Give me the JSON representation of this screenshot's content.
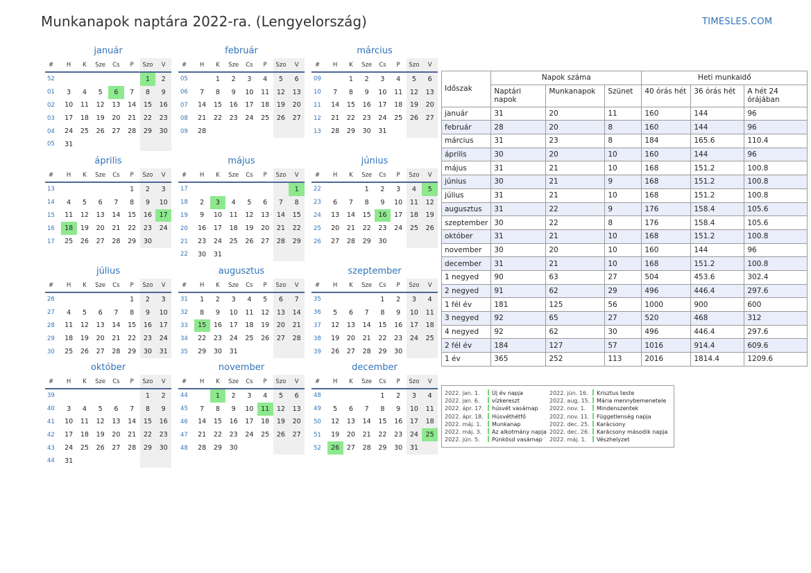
{
  "header": {
    "title": "Munkanapok naptára 2022-ra. (Lengyelország)",
    "brand": "TIMESLES.COM"
  },
  "weekday_headers": [
    "#",
    "H",
    "K",
    "Sze",
    "Cs",
    "P",
    "Szo",
    "V"
  ],
  "colors": {
    "accent": "#2f72b8",
    "holiday": "#8ee88e",
    "weekend": "#efefef",
    "rule": "#4d6694",
    "zebra": "#eaedfa"
  },
  "months": [
    {
      "name": "január",
      "rows": [
        [
          "52",
          "",
          "",
          "",
          "",
          "",
          "1",
          "2"
        ],
        [
          "01",
          "3",
          "4",
          "5",
          "6",
          "7",
          "8",
          "9"
        ],
        [
          "02",
          "10",
          "11",
          "12",
          "13",
          "14",
          "15",
          "16"
        ],
        [
          "03",
          "17",
          "18",
          "19",
          "20",
          "21",
          "22",
          "23"
        ],
        [
          "04",
          "24",
          "25",
          "26",
          "27",
          "28",
          "29",
          "30"
        ],
        [
          "05",
          "31",
          "",
          "",
          "",
          "",
          "",
          ""
        ]
      ],
      "holidays": [
        "1",
        "6"
      ]
    },
    {
      "name": "február",
      "rows": [
        [
          "05",
          "",
          "1",
          "2",
          "3",
          "4",
          "5",
          "6"
        ],
        [
          "06",
          "7",
          "8",
          "9",
          "10",
          "11",
          "12",
          "13"
        ],
        [
          "07",
          "14",
          "15",
          "16",
          "17",
          "18",
          "19",
          "20"
        ],
        [
          "08",
          "21",
          "22",
          "23",
          "24",
          "25",
          "26",
          "27"
        ],
        [
          "09",
          "28",
          "",
          "",
          "",
          "",
          "",
          ""
        ]
      ],
      "holidays": []
    },
    {
      "name": "március",
      "rows": [
        [
          "09",
          "",
          "1",
          "2",
          "3",
          "4",
          "5",
          "6"
        ],
        [
          "10",
          "7",
          "8",
          "9",
          "10",
          "11",
          "12",
          "13"
        ],
        [
          "11",
          "14",
          "15",
          "16",
          "17",
          "18",
          "19",
          "20"
        ],
        [
          "12",
          "21",
          "22",
          "23",
          "24",
          "25",
          "26",
          "27"
        ],
        [
          "13",
          "28",
          "29",
          "30",
          "31",
          "",
          "",
          ""
        ]
      ],
      "holidays": []
    },
    {
      "name": "április",
      "rows": [
        [
          "13",
          "",
          "",
          "",
          "",
          "1",
          "2",
          "3"
        ],
        [
          "14",
          "4",
          "5",
          "6",
          "7",
          "8",
          "9",
          "10"
        ],
        [
          "15",
          "11",
          "12",
          "13",
          "14",
          "15",
          "16",
          "17"
        ],
        [
          "16",
          "18",
          "19",
          "20",
          "21",
          "22",
          "23",
          "24"
        ],
        [
          "17",
          "25",
          "26",
          "27",
          "28",
          "29",
          "30",
          ""
        ]
      ],
      "holidays": [
        "17",
        "18"
      ]
    },
    {
      "name": "május",
      "rows": [
        [
          "17",
          "",
          "",
          "",
          "",
          "",
          "",
          "1"
        ],
        [
          "18",
          "2",
          "3",
          "4",
          "5",
          "6",
          "7",
          "8"
        ],
        [
          "19",
          "9",
          "10",
          "11",
          "12",
          "13",
          "14",
          "15"
        ],
        [
          "20",
          "16",
          "17",
          "18",
          "19",
          "20",
          "21",
          "22"
        ],
        [
          "21",
          "23",
          "24",
          "25",
          "26",
          "27",
          "28",
          "29"
        ],
        [
          "22",
          "30",
          "31",
          "",
          "",
          "",
          "",
          ""
        ]
      ],
      "holidays": [
        "1",
        "3"
      ]
    },
    {
      "name": "június",
      "rows": [
        [
          "22",
          "",
          "",
          "1",
          "2",
          "3",
          "4",
          "5"
        ],
        [
          "23",
          "6",
          "7",
          "8",
          "9",
          "10",
          "11",
          "12"
        ],
        [
          "24",
          "13",
          "14",
          "15",
          "16",
          "17",
          "18",
          "19"
        ],
        [
          "25",
          "20",
          "21",
          "22",
          "23",
          "24",
          "25",
          "26"
        ],
        [
          "26",
          "27",
          "28",
          "29",
          "30",
          "",
          "",
          ""
        ]
      ],
      "holidays": [
        "5",
        "16"
      ]
    },
    {
      "name": "július",
      "rows": [
        [
          "26",
          "",
          "",
          "",
          "",
          "1",
          "2",
          "3"
        ],
        [
          "27",
          "4",
          "5",
          "6",
          "7",
          "8",
          "9",
          "10"
        ],
        [
          "28",
          "11",
          "12",
          "13",
          "14",
          "15",
          "16",
          "17"
        ],
        [
          "29",
          "18",
          "19",
          "20",
          "21",
          "22",
          "23",
          "24"
        ],
        [
          "30",
          "25",
          "26",
          "27",
          "28",
          "29",
          "30",
          "31"
        ]
      ],
      "holidays": []
    },
    {
      "name": "augusztus",
      "rows": [
        [
          "31",
          "1",
          "2",
          "3",
          "4",
          "5",
          "6",
          "7"
        ],
        [
          "32",
          "8",
          "9",
          "10",
          "11",
          "12",
          "13",
          "14"
        ],
        [
          "33",
          "15",
          "16",
          "17",
          "18",
          "19",
          "20",
          "21"
        ],
        [
          "34",
          "22",
          "23",
          "24",
          "25",
          "26",
          "27",
          "28"
        ],
        [
          "35",
          "29",
          "30",
          "31",
          "",
          "",
          "",
          ""
        ]
      ],
      "holidays": [
        "15"
      ]
    },
    {
      "name": "szeptember",
      "rows": [
        [
          "35",
          "",
          "",
          "",
          "1",
          "2",
          "3",
          "4"
        ],
        [
          "36",
          "5",
          "6",
          "7",
          "8",
          "9",
          "10",
          "11"
        ],
        [
          "37",
          "12",
          "13",
          "14",
          "15",
          "16",
          "17",
          "18"
        ],
        [
          "38",
          "19",
          "20",
          "21",
          "22",
          "23",
          "24",
          "25"
        ],
        [
          "39",
          "26",
          "27",
          "28",
          "29",
          "30",
          "",
          ""
        ]
      ],
      "holidays": []
    },
    {
      "name": "október",
      "rows": [
        [
          "39",
          "",
          "",
          "",
          "",
          "",
          "1",
          "2"
        ],
        [
          "40",
          "3",
          "4",
          "5",
          "6",
          "7",
          "8",
          "9"
        ],
        [
          "41",
          "10",
          "11",
          "12",
          "13",
          "14",
          "15",
          "16"
        ],
        [
          "42",
          "17",
          "18",
          "19",
          "20",
          "21",
          "22",
          "23"
        ],
        [
          "43",
          "24",
          "25",
          "26",
          "27",
          "28",
          "29",
          "30"
        ],
        [
          "44",
          "31",
          "",
          "",
          "",
          "",
          "",
          ""
        ]
      ],
      "holidays": []
    },
    {
      "name": "november",
      "rows": [
        [
          "44",
          "",
          "1",
          "2",
          "3",
          "4",
          "5",
          "6"
        ],
        [
          "45",
          "7",
          "8",
          "9",
          "10",
          "11",
          "12",
          "13"
        ],
        [
          "46",
          "14",
          "15",
          "16",
          "17",
          "18",
          "19",
          "20"
        ],
        [
          "47",
          "21",
          "22",
          "23",
          "24",
          "25",
          "26",
          "27"
        ],
        [
          "48",
          "28",
          "29",
          "30",
          "",
          "",
          "",
          ""
        ]
      ],
      "holidays": [
        "1",
        "11"
      ]
    },
    {
      "name": "december",
      "rows": [
        [
          "48",
          "",
          "",
          "",
          "1",
          "2",
          "3",
          "4"
        ],
        [
          "49",
          "5",
          "6",
          "7",
          "8",
          "9",
          "10",
          "11"
        ],
        [
          "50",
          "12",
          "13",
          "14",
          "15",
          "16",
          "17",
          "18"
        ],
        [
          "51",
          "19",
          "20",
          "21",
          "22",
          "23",
          "24",
          "25"
        ],
        [
          "52",
          "26",
          "27",
          "28",
          "29",
          "30",
          "31",
          ""
        ]
      ],
      "holidays": [
        "25",
        "26"
      ]
    }
  ],
  "summary": {
    "col_period": "Időszak",
    "group_days": "Napok száma",
    "group_week": "Heti munkaidő",
    "cols": [
      "Naptári napok",
      "Munkanapok",
      "Szünet",
      "40 órás hét",
      "36 órás hét",
      "A hét 24 órájában"
    ],
    "rows": [
      [
        "január",
        "31",
        "20",
        "11",
        "160",
        "144",
        "96"
      ],
      [
        "február",
        "28",
        "20",
        "8",
        "160",
        "144",
        "96"
      ],
      [
        "március",
        "31",
        "23",
        "8",
        "184",
        "165.6",
        "110.4"
      ],
      [
        "április",
        "30",
        "20",
        "10",
        "160",
        "144",
        "96"
      ],
      [
        "május",
        "31",
        "21",
        "10",
        "168",
        "151.2",
        "100.8"
      ],
      [
        "június",
        "30",
        "21",
        "9",
        "168",
        "151.2",
        "100.8"
      ],
      [
        "július",
        "31",
        "21",
        "10",
        "168",
        "151.2",
        "100.8"
      ],
      [
        "augusztus",
        "31",
        "22",
        "9",
        "176",
        "158.4",
        "105.6"
      ],
      [
        "szeptember",
        "30",
        "22",
        "8",
        "176",
        "158.4",
        "105.6"
      ],
      [
        "október",
        "31",
        "21",
        "10",
        "168",
        "151.2",
        "100.8"
      ],
      [
        "november",
        "30",
        "20",
        "10",
        "160",
        "144",
        "96"
      ],
      [
        "december",
        "31",
        "21",
        "10",
        "168",
        "151.2",
        "100.8"
      ],
      [
        "1 negyed",
        "90",
        "63",
        "27",
        "504",
        "453.6",
        "302.4"
      ],
      [
        "2 negyed",
        "91",
        "62",
        "29",
        "496",
        "446.4",
        "297.6"
      ],
      [
        "1 fél év",
        "181",
        "125",
        "56",
        "1000",
        "900",
        "600"
      ],
      [
        "3 negyed",
        "92",
        "65",
        "27",
        "520",
        "468",
        "312"
      ],
      [
        "4 negyed",
        "92",
        "62",
        "30",
        "496",
        "446.4",
        "297.6"
      ],
      [
        "2 fél év",
        "184",
        "127",
        "57",
        "1016",
        "914.4",
        "609.6"
      ],
      [
        "1 év",
        "365",
        "252",
        "113",
        "2016",
        "1814.4",
        "1209.6"
      ]
    ]
  },
  "holidays_legend": {
    "left": [
      [
        "2022. jan. 1.",
        "Új év napja"
      ],
      [
        "2022. jan. 6.",
        "vízkereszt"
      ],
      [
        "2022. ápr. 17.",
        "húsvét vasárnap"
      ],
      [
        "2022. ápr. 18.",
        "Húsvéthétfő"
      ],
      [
        "2022. máj. 1.",
        "Munkanap"
      ],
      [
        "2022. máj. 3.",
        "Az alkotmány napja"
      ],
      [
        "2022. jún. 5.",
        "Pünkösd vasárnap"
      ]
    ],
    "right": [
      [
        "2022. jún. 16.",
        "Krisztus teste"
      ],
      [
        "2022. aug. 15.",
        "Mária mennybemenetele"
      ],
      [
        "2022. nov. 1.",
        "Mindenszentek"
      ],
      [
        "2022. nov. 11.",
        "Függetlenség napja"
      ],
      [
        "2022. dec. 25.",
        "Karácsony"
      ],
      [
        "2022. dec. 26.",
        "Karácsony második napja"
      ],
      [
        "2022. máj. 1.",
        "Vészhelyzet"
      ]
    ]
  }
}
